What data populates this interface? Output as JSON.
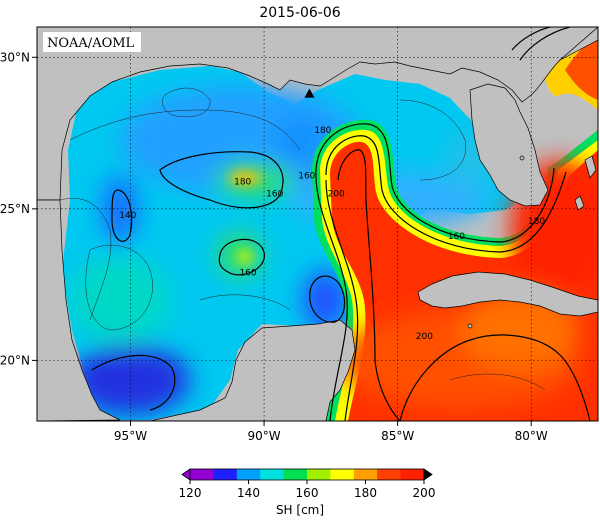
{
  "title": "2015-06-06",
  "credit": "NOAA/AOML",
  "map": {
    "lon_range": [
      -98.5,
      -77.5
    ],
    "lat_range": [
      18.0,
      31.0
    ],
    "lon_ticks": [
      {
        "value": -95,
        "label": "95°W"
      },
      {
        "value": -90,
        "label": "90°W"
      },
      {
        "value": -85,
        "label": "85°W"
      },
      {
        "value": -80,
        "label": "80°W"
      }
    ],
    "lat_ticks": [
      {
        "value": 30,
        "label": "30°N"
      },
      {
        "value": 25,
        "label": "25°N"
      },
      {
        "value": 20,
        "label": "20°N"
      }
    ],
    "land_color": "#c0c0c0",
    "grid": true
  },
  "contour_labels": [
    {
      "text": "180",
      "lon": -90.8,
      "lat": 25.9
    },
    {
      "text": "160",
      "lon": -89.6,
      "lat": 25.5
    },
    {
      "text": "160",
      "lon": -88.4,
      "lat": 26.1
    },
    {
      "text": "180",
      "lon": -87.8,
      "lat": 27.6
    },
    {
      "text": "200",
      "lon": -87.3,
      "lat": 25.5
    },
    {
      "text": "140",
      "lon": -95.1,
      "lat": 24.8
    },
    {
      "text": "160",
      "lon": -90.6,
      "lat": 22.9
    },
    {
      "text": "160",
      "lon": -82.8,
      "lat": 24.1
    },
    {
      "text": "180",
      "lon": -79.8,
      "lat": 24.6
    },
    {
      "text": "200",
      "lon": -84.0,
      "lat": 20.8
    }
  ],
  "marker": {
    "name": "triangle",
    "lon": -88.3,
    "lat": 28.8
  },
  "colorbar": {
    "label": "SH [cm]",
    "min": 120,
    "max": 200,
    "ticks": [
      "120",
      "140",
      "160",
      "180",
      "200"
    ],
    "colors": [
      "#9400d3",
      "#2020ff",
      "#00a0ff",
      "#00e0e0",
      "#00e050",
      "#a0f000",
      "#ffff00",
      "#ffa000",
      "#ff4000",
      "#ff2000"
    ]
  }
}
